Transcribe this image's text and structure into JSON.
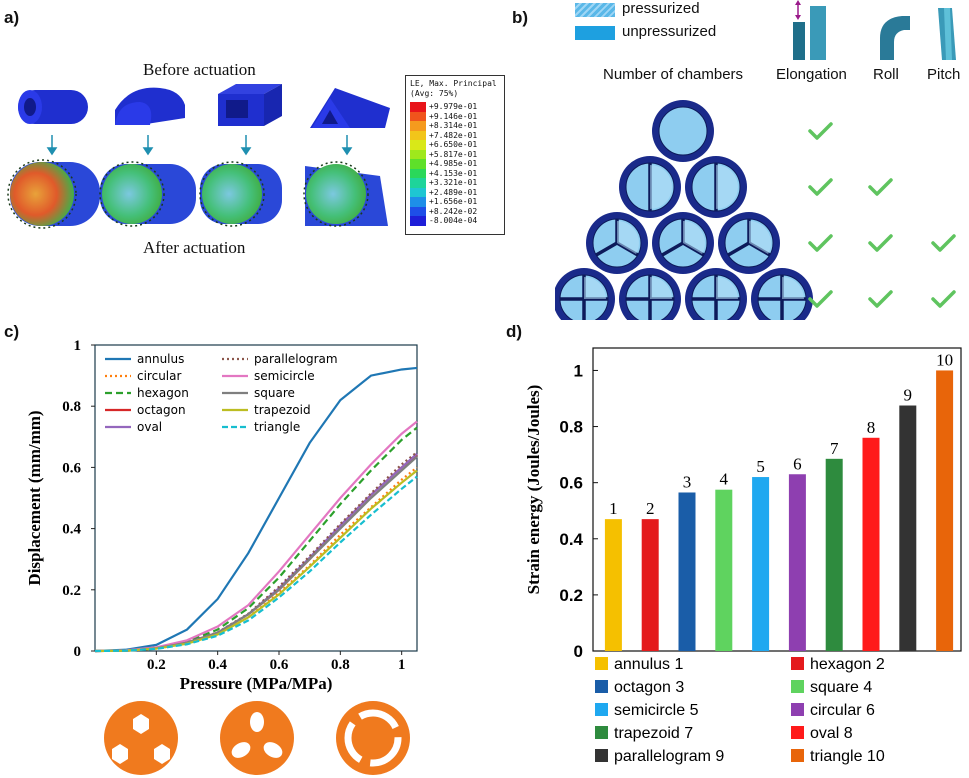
{
  "panel_a": {
    "label": "a)",
    "before_text": "Before actuation",
    "after_text": "After actuation",
    "legend_title_1": "LE, Max. Principal",
    "legend_title_2": "(Avg: 75%)",
    "legend_values": [
      "+9.979e-01",
      "+9.146e-01",
      "+8.314e-01",
      "+7.482e-01",
      "+6.650e-01",
      "+5.817e-01",
      "+4.985e-01",
      "+4.153e-01",
      "+3.321e-01",
      "+2.489e-01",
      "+1.656e-01",
      "+8.242e-02",
      "-8.004e-04"
    ],
    "legend_colors": [
      "#e8141a",
      "#f0541c",
      "#f59a1e",
      "#f2c51a",
      "#d9e818",
      "#9fe81c",
      "#5ee02a",
      "#2ad85a",
      "#1ed49a",
      "#1ec6d2",
      "#1e8ee8",
      "#1e4ee8",
      "#1e1ed8"
    ]
  },
  "panel_b": {
    "label": "b)",
    "legend_pressurized": "pressurized",
    "legend_unpressurized": "unpressurized",
    "col_chambers": "Number of chambers",
    "col_elongation": "Elongation",
    "col_roll": "Roll",
    "col_pitch": "Pitch",
    "rows": [
      {
        "chambers": 1,
        "elongation": true,
        "roll": false,
        "pitch": false
      },
      {
        "chambers": 2,
        "elongation": true,
        "roll": true,
        "pitch": false
      },
      {
        "chambers": 3,
        "elongation": true,
        "roll": true,
        "pitch": true
      },
      {
        "chambers": 4,
        "elongation": true,
        "roll": true,
        "pitch": true
      }
    ],
    "check_color": "#5fc45f"
  },
  "panel_c": {
    "label": "c)",
    "chart_data": {
      "type": "line",
      "xlabel": "Pressure (MPa/MPa)",
      "ylabel": "Displacement (mm/mm)",
      "xlim": [
        0,
        1.05
      ],
      "ylim": [
        0,
        1.0
      ],
      "xticks": [
        "0.2",
        "0.4",
        "0.6",
        "0.8",
        "1"
      ],
      "xtick_values": [
        0.2,
        0.4,
        0.6,
        0.8,
        1.0
      ],
      "yticks": [
        "0",
        "0.2",
        "0.4",
        "0.6",
        "0.8",
        "1"
      ],
      "ytick_values": [
        0,
        0.2,
        0.4,
        0.6,
        0.8,
        1.0
      ],
      "x": [
        0,
        0.1,
        0.2,
        0.3,
        0.4,
        0.5,
        0.6,
        0.7,
        0.8,
        0.9,
        1.0,
        1.05
      ],
      "series": [
        {
          "name": "annulus",
          "color": "#1f77b4",
          "dash": "",
          "values": [
            0,
            0.004,
            0.02,
            0.07,
            0.17,
            0.32,
            0.5,
            0.68,
            0.82,
            0.9,
            0.92,
            0.925
          ]
        },
        {
          "name": "circular",
          "color": "#ff7f0e",
          "dash": "2,3",
          "values": [
            0,
            0.001,
            0.008,
            0.025,
            0.055,
            0.11,
            0.19,
            0.28,
            0.38,
            0.47,
            0.56,
            0.6
          ]
        },
        {
          "name": "hexagon",
          "color": "#2ca02c",
          "dash": "7,4",
          "values": [
            0,
            0.001,
            0.01,
            0.03,
            0.07,
            0.14,
            0.24,
            0.36,
            0.48,
            0.59,
            0.69,
            0.73
          ]
        },
        {
          "name": "octagon",
          "color": "#d62728",
          "dash": "",
          "values": [
            0,
            0.001,
            0.009,
            0.027,
            0.06,
            0.12,
            0.2,
            0.3,
            0.41,
            0.51,
            0.6,
            0.64
          ]
        },
        {
          "name": "oval",
          "color": "#9467bd",
          "dash": "",
          "values": [
            0,
            0.001,
            0.009,
            0.027,
            0.06,
            0.12,
            0.205,
            0.305,
            0.41,
            0.51,
            0.6,
            0.645
          ]
        },
        {
          "name": "parallelogram",
          "color": "#8c564b",
          "dash": "2,3",
          "values": [
            0,
            0.001,
            0.009,
            0.028,
            0.061,
            0.122,
            0.21,
            0.31,
            0.415,
            0.515,
            0.61,
            0.65
          ]
        },
        {
          "name": "semicircle",
          "color": "#e377c2",
          "dash": "",
          "values": [
            0,
            0.002,
            0.012,
            0.035,
            0.08,
            0.15,
            0.26,
            0.38,
            0.5,
            0.61,
            0.71,
            0.75
          ]
        },
        {
          "name": "square",
          "color": "#7f7f7f",
          "dash": "",
          "values": [
            0,
            0.001,
            0.009,
            0.027,
            0.06,
            0.12,
            0.2,
            0.3,
            0.4,
            0.5,
            0.59,
            0.635
          ]
        },
        {
          "name": "trapezoid",
          "color": "#bcbd22",
          "dash": "",
          "values": [
            0,
            0.001,
            0.008,
            0.024,
            0.054,
            0.11,
            0.185,
            0.275,
            0.37,
            0.465,
            0.55,
            0.59
          ]
        },
        {
          "name": "triangle",
          "color": "#17becf",
          "dash": "6,3",
          "values": [
            0,
            0.001,
            0.007,
            0.022,
            0.05,
            0.1,
            0.175,
            0.26,
            0.355,
            0.445,
            0.53,
            0.57
          ]
        }
      ]
    }
  },
  "panel_d": {
    "label": "d)",
    "chart_data": {
      "type": "bar",
      "ylabel": "Strain energy (Joules/Joules)",
      "ylim": [
        0,
        1.08
      ],
      "yticks": [
        "0",
        "0.2",
        "0.4",
        "0.6",
        "0.8",
        "1"
      ],
      "ytick_values": [
        0,
        0.2,
        0.4,
        0.6,
        0.8,
        1.0
      ],
      "categories": [
        "annulus",
        "hexagon",
        "octagon",
        "square",
        "semicircle",
        "circular",
        "trapezoid",
        "oval",
        "parallelogram",
        "triangle"
      ],
      "values": [
        0.47,
        0.47,
        0.565,
        0.575,
        0.62,
        0.63,
        0.685,
        0.76,
        0.875,
        1.0
      ],
      "bar_labels": [
        "1",
        "2",
        "3",
        "4",
        "5",
        "6",
        "7",
        "8",
        "9",
        "10"
      ],
      "colors": [
        "#f5c000",
        "#e41a1c",
        "#1a5da8",
        "#5fd35f",
        "#1fa8f0",
        "#8e3fb0",
        "#2e8b3e",
        "#ff1a1a",
        "#333333",
        "#e8650a"
      ],
      "legend": [
        "annulus 1",
        "hexagon 2",
        "octagon 3",
        "square 4",
        "semicircle 5",
        "circular 6",
        "trapezoid 7",
        "oval 8",
        "parallelogram 9",
        "triangle 10"
      ]
    }
  }
}
